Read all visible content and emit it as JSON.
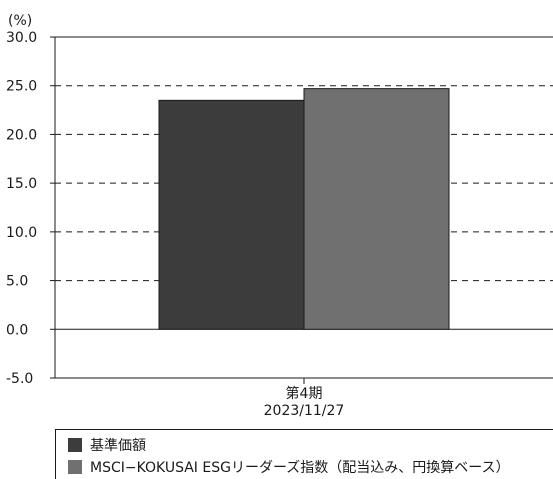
{
  "chart_data": {
    "type": "bar",
    "ylabel": "(%)",
    "ylim": [
      -5,
      30
    ],
    "yticks": [
      "30.0",
      "25.0",
      "20.0",
      "15.0",
      "10.0",
      "5.0",
      "0.0",
      "-5.0"
    ],
    "ytick_values": [
      30,
      25,
      20,
      15,
      10,
      5,
      0,
      -5
    ],
    "grid": "horizontal-dashed",
    "categories": [
      "第4期\n2023/11/27"
    ],
    "category_lines": [
      "第4期",
      "2023/11/27"
    ],
    "series": [
      {
        "name": "基準価額",
        "values": [
          23.5
        ],
        "color": "#3c3c3c"
      },
      {
        "name": "MSCI−KOKUSAI ESGリーダーズ指数（配当込み、円換算ベース）",
        "values": [
          24.7
        ],
        "color": "#707070"
      }
    ],
    "legend_position": "bottom"
  }
}
